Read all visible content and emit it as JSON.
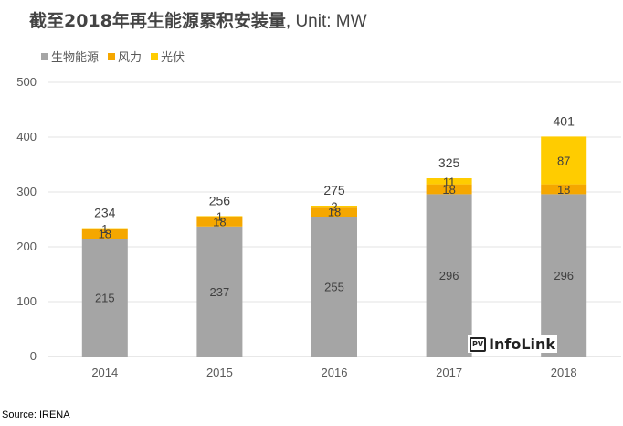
{
  "title": {
    "main": "截至2018年再生能源累积安装量",
    "unit": ", Unit: MW"
  },
  "source": "Source: IRENA",
  "logo": {
    "badge": "PV",
    "text": "InfoLink"
  },
  "chart_data": {
    "type": "bar",
    "stacked": true,
    "title": "截至2018年再生能源累积安装量, Unit: MW",
    "xlabel": "",
    "ylabel": "",
    "ylim": [
      0,
      500
    ],
    "yticks": [
      0,
      100,
      200,
      300,
      400,
      500
    ],
    "grid": true,
    "legend_position": "top-left",
    "categories": [
      "2014",
      "2015",
      "2016",
      "2017",
      "2018"
    ],
    "series": [
      {
        "name": "生物能源",
        "color": "#A5A5A5",
        "values": [
          215,
          237,
          255,
          296,
          296
        ]
      },
      {
        "name": "风力",
        "color": "#F5A700",
        "values": [
          18,
          18,
          18,
          18,
          18
        ]
      },
      {
        "name": "光伏",
        "color": "#FFCC00",
        "values": [
          1,
          1,
          2,
          11,
          87
        ]
      }
    ],
    "totals": [
      234,
      256,
      275,
      325,
      401
    ]
  }
}
